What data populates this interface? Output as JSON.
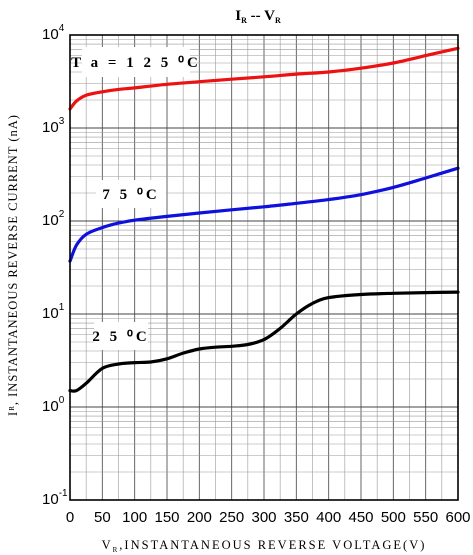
{
  "chart_data": {
    "type": "line",
    "title": "I R -- V R",
    "xlabel": "V R, INSTANTANEOUS REVERSE VOLTAGE (V)",
    "ylabel": "I R, INSTANTANEOUS REVERSE CURRENT (nA)",
    "xlim": [
      0,
      600
    ],
    "ylim": [
      0.1,
      10000
    ],
    "yscale": "log",
    "grid": true,
    "x_ticks": [
      "0",
      "50",
      "100",
      "150",
      "200",
      "250",
      "300",
      "350",
      "400",
      "450",
      "500",
      "550",
      "600"
    ],
    "y_ticks": [
      {
        "base": "10",
        "exp": "-1"
      },
      {
        "base": "10",
        "exp": "0"
      },
      {
        "base": "10",
        "exp": "1"
      },
      {
        "base": "10",
        "exp": "2"
      },
      {
        "base": "10",
        "exp": "3"
      },
      {
        "base": "10",
        "exp": "4"
      }
    ],
    "series": [
      {
        "name": "Ta = 125 °C",
        "label": "T a = 1 2 5 ⁰C",
        "color": "#ee1111",
        "x": [
          0,
          10,
          25,
          50,
          75,
          100,
          150,
          200,
          250,
          300,
          350,
          400,
          450,
          500,
          550,
          600
        ],
        "y": [
          1600,
          1950,
          2250,
          2450,
          2600,
          2700,
          2950,
          3150,
          3350,
          3550,
          3800,
          4000,
          4400,
          5000,
          6000,
          7200
        ]
      },
      {
        "name": "75 °C",
        "label": "7 5 ⁰C",
        "color": "#1010dd",
        "x": [
          0,
          10,
          25,
          50,
          75,
          100,
          150,
          200,
          250,
          300,
          350,
          400,
          450,
          500,
          550,
          600
        ],
        "y": [
          37,
          55,
          72,
          85,
          95,
          102,
          112,
          122,
          132,
          142,
          155,
          170,
          192,
          230,
          290,
          370
        ]
      },
      {
        "name": "25 °C",
        "label": "2 5 ⁰C",
        "color": "#000000",
        "x": [
          0,
          10,
          25,
          50,
          75,
          100,
          125,
          150,
          175,
          200,
          225,
          250,
          275,
          300,
          325,
          350,
          375,
          400,
          450,
          500,
          550,
          600
        ],
        "y": [
          1.5,
          1.5,
          1.8,
          2.6,
          2.9,
          3.0,
          3.05,
          3.3,
          3.8,
          4.2,
          4.4,
          4.5,
          4.7,
          5.3,
          7.0,
          10,
          13,
          15,
          16.2,
          16.7,
          17,
          17.2
        ]
      }
    ]
  }
}
